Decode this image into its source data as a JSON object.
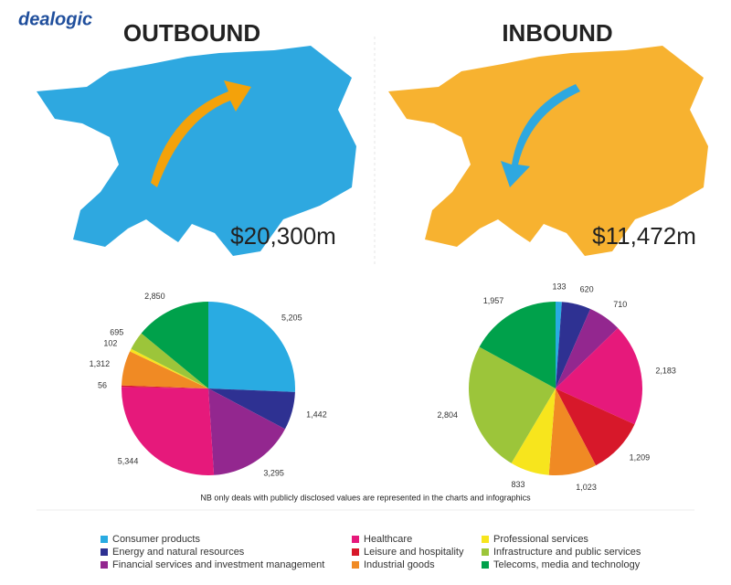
{
  "logo": "dealogic",
  "note": "NB only deals with publicly disclosed values are represented in the charts and infographics",
  "legend": {
    "categories": [
      "Consumer products",
      "Energy and natural resources",
      "Financial services and investment management",
      "Healthcare",
      "Leisure and hospitality",
      "Industrial goods",
      "Professional services",
      "Infrastructure and public services",
      "Telecoms, media and technology"
    ],
    "colors": [
      "#29abe2",
      "#2e3192",
      "#93278f",
      "#e6197b",
      "#d7182a",
      "#f08a24",
      "#f7e51d",
      "#9cc53a",
      "#00a14b"
    ]
  },
  "chart_data": [
    {
      "type": "pie",
      "title": "OUTBOUND",
      "annotation": "$20,300m",
      "values": [
        5205,
        1442,
        3295,
        5344,
        56,
        1312,
        102,
        695,
        2850
      ],
      "value_labels": [
        "5,205",
        "1,442",
        "3,295",
        "5,344",
        "56",
        "1,312",
        "102",
        "695",
        "2,850"
      ]
    },
    {
      "type": "pie",
      "title": "INBOUND",
      "annotation": "$11,472m",
      "values": [
        133,
        620,
        710,
        2183,
        1209,
        1023,
        833,
        2804,
        1957
      ],
      "value_labels": [
        "133",
        "620",
        "710",
        "2,183",
        "1,209",
        "1,023",
        "833",
        "2,804",
        "1,957"
      ]
    }
  ]
}
